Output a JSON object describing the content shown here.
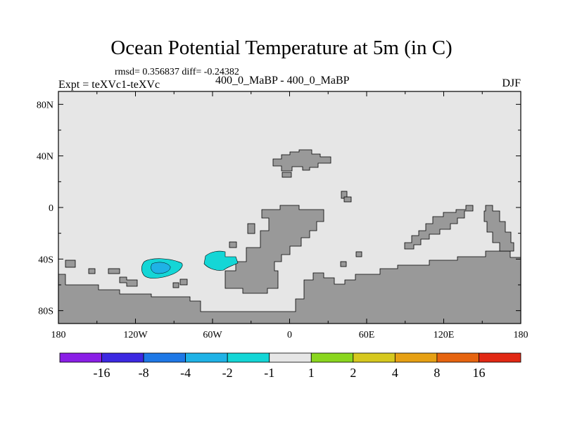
{
  "title": "Ocean Potential Temperature at 5m (in C)",
  "stats_line": "rmsd= 0.356837 diff= -0.24382",
  "experiment_label": "Expt = teXVc1-teXVc",
  "difference_label": "400_0_MaBP - 400_0_MaBP",
  "season_label": "DJF",
  "colors": {
    "ocean_background": "#e6e6e6",
    "land": "#999999",
    "anomaly_light": "#14d6d6",
    "anomaly_dark": "#1fb2e6"
  },
  "chart_data": {
    "type": "heatmap",
    "map_projection": "cylindrical-equidistant",
    "lon_range": [
      -180,
      180
    ],
    "lat_range": [
      -90,
      90
    ],
    "x_ticks": [
      "180",
      "120W",
      "60W",
      "0",
      "60E",
      "120E",
      "180"
    ],
    "y_ticks": [
      "80N",
      "40N",
      "0",
      "40S",
      "80S"
    ],
    "colorbar": {
      "bins": [
        {
          "color": "#8a1ee6",
          "range": "< -16"
        },
        {
          "color": "#3c28e1",
          "range": "-16 to -8"
        },
        {
          "color": "#1e78e6",
          "range": "-8 to -4"
        },
        {
          "color": "#1fb2e6",
          "range": "-4 to -2"
        },
        {
          "color": "#14d6d6",
          "range": "-2 to -1"
        },
        {
          "color": "#e6e6e6",
          "range": "-1 to 1"
        },
        {
          "color": "#8ad61e",
          "range": "1 to 2"
        },
        {
          "color": "#d6c81e",
          "range": "2 to 4"
        },
        {
          "color": "#e6a014",
          "range": "4 to 8"
        },
        {
          "color": "#e6640f",
          "range": "8 to 16"
        },
        {
          "color": "#e12814",
          "range": "> 16"
        }
      ],
      "labels": [
        "-16",
        "-8",
        "-4",
        "-2",
        "-1",
        "1",
        "2",
        "4",
        "8",
        "16"
      ]
    },
    "anomaly_features": [
      {
        "name": "anomaly-west",
        "lon_range": [
          -112,
          -83
        ],
        "lat_range": [
          -55,
          -42
        ],
        "value_bins": [
          "-2 to -1",
          "-4 to -2"
        ]
      },
      {
        "name": "anomaly-east",
        "lon_range": [
          -66,
          -38
        ],
        "lat_range": [
          -50,
          -33
        ],
        "value_bins": [
          "-2 to -1"
        ]
      }
    ]
  }
}
